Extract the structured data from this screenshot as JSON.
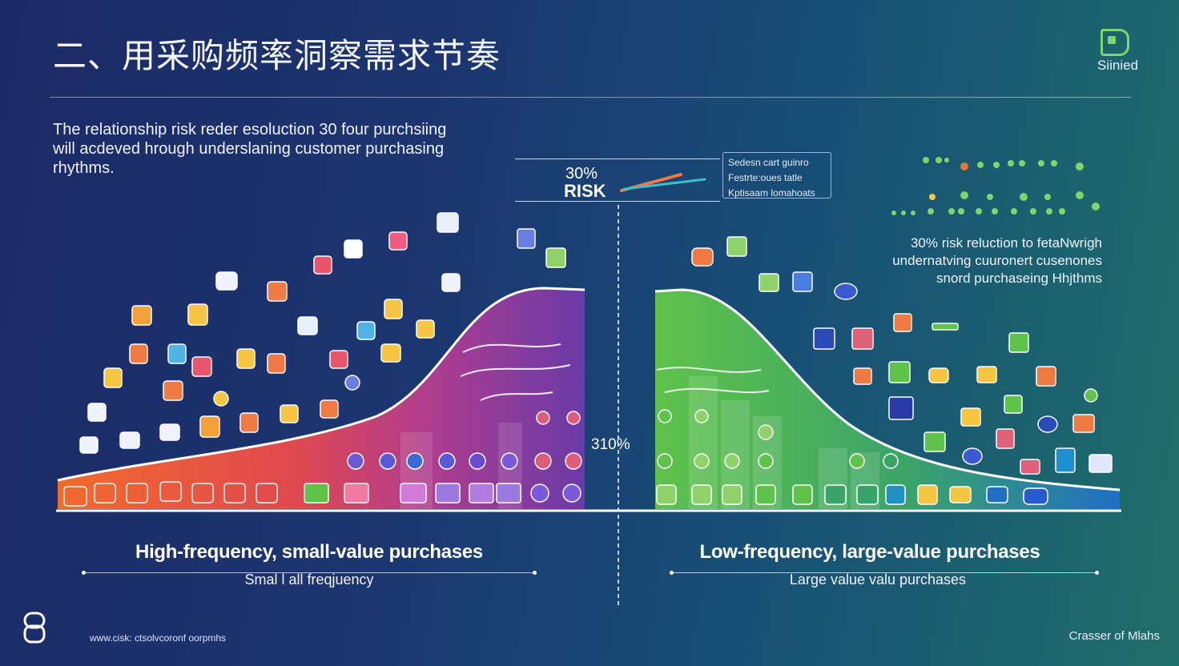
{
  "title": "二、用采购频率洞察需求节奏",
  "logo": {
    "text": "Siinied"
  },
  "intro": "The relationship risk reder esoluction 30 four purchsiing will acdeved hrough underslaning customer purchasing rhythms.",
  "risk_callout": {
    "percent": "30%",
    "word": "RISK"
  },
  "note_box": [
    "Sedesn cart guinro",
    "Festrte:oues tatle",
    "Kptisaam lomahoats"
  ],
  "right_note": [
    "30% risk reluction to fetaNwrigh",
    "undernatving cuuronert cusenones",
    "snord purchaseing Hhjthms"
  ],
  "center_percent": "310%",
  "left_section": {
    "caption": "High-frequency, small-value purchases",
    "subcaption": "Smal l all freqjuency"
  },
  "right_section": {
    "caption": "Low-frequency, large-value purchases",
    "subcaption": "Large value valu purchases"
  },
  "footer": {
    "left": "www.cisk: ctsolvcoronf oorpmhs",
    "right": "Crasser of Mlahs"
  },
  "colors": {
    "left_curve_start": "#f26b2b",
    "left_curve_mid": "#d8407a",
    "left_curve_end": "#6a3aa8",
    "right_curve_start": "#5fc24a",
    "right_curve_end": "#1f78c8",
    "accent_green": "#7ed66a"
  },
  "icons": [
    "shopping-basket-icon",
    "shopping-bag-icon",
    "grocery-jar-icon",
    "plant-pot-icon",
    "logo-mark-icon",
    "lock-icon"
  ]
}
